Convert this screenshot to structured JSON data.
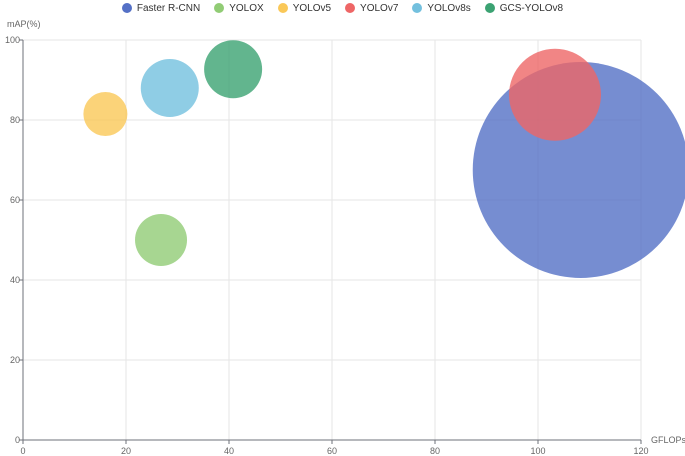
{
  "chart_data": {
    "type": "scatter",
    "subtype": "bubble",
    "title": "",
    "xlabel": "GFLOPs",
    "ylabel": "mAP(%)",
    "xlim": [
      0,
      120
    ],
    "ylim": [
      0,
      100
    ],
    "xticks": [
      0,
      20,
      40,
      60,
      80,
      100,
      120
    ],
    "yticks": [
      0,
      20,
      40,
      60,
      80,
      100
    ],
    "grid": true,
    "legend_position": "top-center",
    "series": [
      {
        "name": "Faster R-CNN",
        "color": "#5470c6",
        "x": 108.3,
        "y": 67.5,
        "size": 108
      },
      {
        "name": "YOLOX",
        "color": "#91cc75",
        "x": 26.8,
        "y": 50.0,
        "size": 26
      },
      {
        "name": "YOLOv5",
        "color": "#fac858",
        "x": 16.0,
        "y": 81.5,
        "size": 22
      },
      {
        "name": "YOLOv7",
        "color": "#ee6666",
        "x": 103.3,
        "y": 86.3,
        "size": 46
      },
      {
        "name": "YOLOv8s",
        "color": "#73c0de",
        "x": 28.5,
        "y": 88.0,
        "size": 29
      },
      {
        "name": "GCS-YOLOv8",
        "color": "#3ba272",
        "x": 40.8,
        "y": 92.7,
        "size": 29
      }
    ]
  }
}
